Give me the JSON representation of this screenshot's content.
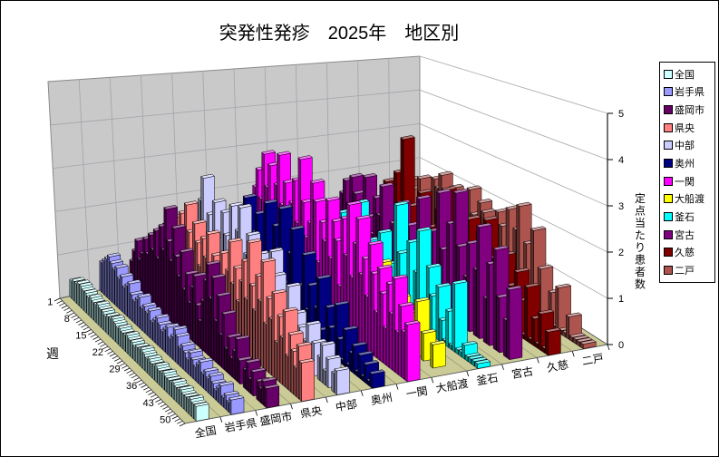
{
  "title": "突発性発疹　2025年　地区別",
  "chart_data": {
    "type": "bar",
    "subtype": "3d-column",
    "depth_axis_title": "週",
    "value_axis_title": "定点当たり患者数",
    "depth_tick_labels": [
      "1",
      "8",
      "15",
      "22",
      "29",
      "36",
      "43",
      "50"
    ],
    "value_tick_labels": [
      "0",
      "1",
      "2",
      "3",
      "4",
      "5"
    ],
    "weeks": 52,
    "ylim": [
      0,
      5
    ],
    "legend_position": "right",
    "categories_note": "depth axis = week 1..52, series = districts",
    "series": [
      {
        "key": "zenkoku",
        "name": "全国",
        "color": "#CCFFFF",
        "values": [
          0.4,
          0.45,
          0.45,
          0.5,
          0.5,
          0.45,
          0.45,
          0.4,
          0.45,
          0.4,
          0.4,
          0.45,
          0.4,
          0.4,
          0.35,
          0.4,
          0.4,
          0.45,
          0.4,
          0.35,
          0.4,
          0.35,
          0.35,
          0.4,
          0.35,
          0.35,
          0.3,
          0.35,
          0.35,
          0.4,
          0.35,
          0.3,
          0.35,
          0.3,
          0.3,
          0.35,
          0.3,
          0.3,
          0.35,
          0.3,
          0.3,
          0.3,
          0.35,
          0.3,
          0.3,
          0.35,
          0.3,
          0.3,
          0.3,
          0.35,
          0.3,
          0.3
        ]
      },
      {
        "key": "iwateken",
        "name": "岩手県",
        "color": "#9999FF",
        "values": [
          0.7,
          0.8,
          0.9,
          1.0,
          0.9,
          0.8,
          0.9,
          0.7,
          0.8,
          0.6,
          0.7,
          0.8,
          0.6,
          0.5,
          0.6,
          0.7,
          0.5,
          0.6,
          0.5,
          0.6,
          0.4,
          0.5,
          0.6,
          0.5,
          0.4,
          0.5,
          0.6,
          0.4,
          0.5,
          0.7,
          0.6,
          0.4,
          0.5,
          0.4,
          0.3,
          0.5,
          0.4,
          0.3,
          0.4,
          0.5,
          0.3,
          0.4,
          0.3,
          0.4,
          0.3,
          0.2,
          0.3,
          0.4,
          0.2,
          0.3,
          0.2,
          0.3
        ]
      },
      {
        "key": "moriokashi",
        "name": "盛岡市",
        "color": "#660066",
        "values": [
          0.6,
          0.9,
          1.2,
          0.8,
          1.0,
          1.4,
          1.1,
          1.6,
          1.3,
          1.8,
          1.2,
          2.0,
          1.5,
          2.5,
          1.8,
          1.4,
          2.2,
          1.6,
          1.2,
          1.8,
          1.0,
          1.4,
          0.8,
          1.2,
          1.5,
          0.9,
          0.6,
          1.1,
          1.6,
          2.0,
          1.3,
          1.8,
          0.9,
          1.5,
          0.7,
          1.2,
          0.5,
          0.8,
          0.4,
          0.6,
          0.9,
          0.5,
          0,
          0.4,
          0.6,
          0.3,
          0.5,
          0,
          0.4,
          0.3,
          0.5,
          0.4
        ]
      },
      {
        "key": "kenoh",
        "name": "県央",
        "color": "#FF8080",
        "values": [
          1.0,
          1.4,
          0.9,
          1.6,
          1.2,
          1.8,
          1.4,
          2.0,
          1.5,
          2.3,
          1.7,
          1.3,
          2.0,
          1.6,
          1.1,
          1.8,
          1.4,
          2.0,
          1.2,
          1.6,
          0.9,
          1.4,
          1.8,
          1.1,
          1.5,
          2.2,
          1.3,
          1.7,
          1.0,
          1.5,
          2.0,
          1.2,
          2.5,
          1.6,
          1.1,
          1.9,
          1.4,
          2.3,
          1.0,
          1.6,
          1.2,
          1.8,
          0.8,
          1.4,
          1.0,
          1.6,
          0.7,
          1.2,
          0.9,
          0.6,
          1.1,
          0.8
        ]
      },
      {
        "key": "chubu",
        "name": "中部",
        "color": "#CCCCFF",
        "values": [
          0.8,
          1.5,
          0.6,
          2.0,
          2.6,
          1.2,
          1.8,
          0.9,
          2.2,
          1.4,
          0.7,
          2.1,
          1.6,
          1.0,
          2.4,
          1.3,
          1.9,
          2.5,
          0.8,
          1.5,
          2.0,
          1.1,
          0.6,
          1.7,
          1.2,
          0.5,
          1.4,
          0.9,
          2.0,
          1.5,
          0.7,
          1.1,
          0.4,
          0.9,
          1.5,
          0.6,
          1.0,
          0.5,
          0.8,
          0,
          0.6,
          1.0,
          0.4,
          0.7,
          0,
          0.5,
          0.8,
          0.3,
          0.6,
          0,
          0.4,
          0.5
        ]
      },
      {
        "key": "oshu",
        "name": "奥州",
        "color": "#000080",
        "values": [
          0.5,
          0.2,
          1.2,
          0.8,
          0.1,
          1.8,
          0.6,
          0.1,
          2.2,
          1.0,
          0.1,
          1.5,
          2.0,
          0.7,
          0.1,
          2.4,
          1.2,
          0.1,
          2.0,
          1.5,
          2.5,
          0.8,
          0.1,
          1.6,
          2.2,
          0.5,
          1.0,
          0.1,
          1.8,
          0.6,
          1.2,
          0.1,
          0.8,
          1.5,
          0.4,
          0.1,
          1.0,
          0.6,
          0.1,
          1.2,
          0.5,
          0.1,
          0.8,
          0.1,
          0.4,
          0.6,
          0.1,
          0.5,
          0.1,
          0.4,
          0.1,
          0.3
        ]
      },
      {
        "key": "ichinoseki",
        "name": "一関",
        "color": "#FF00FF",
        "values": [
          1.5,
          2.0,
          2.5,
          1.8,
          3.0,
          2.2,
          2.8,
          1.6,
          2.4,
          3.2,
          2.0,
          2.6,
          1.4,
          2.2,
          2.8,
          1.8,
          3.4,
          2.4,
          1.6,
          2.0,
          3.0,
          2.6,
          1.2,
          2.2,
          1.8,
          2.8,
          1.5,
          2.4,
          2.0,
          1.0,
          2.6,
          1.8,
          3.0,
          1.4,
          2.2,
          2.8,
          1.6,
          2.0,
          1.2,
          2.4,
          1.8,
          1.0,
          2.0,
          1.5,
          0.8,
          1.8,
          1.2,
          2.0,
          0.9,
          1.5,
          1.0,
          1.2
        ]
      },
      {
        "key": "ofunato",
        "name": "大船渡",
        "color": "#FFFF00",
        "values": [
          0.6,
          0,
          0.6,
          0,
          0.9,
          1.0,
          0,
          0.5,
          0,
          1.4,
          0,
          0,
          0.8,
          0,
          0.6,
          0,
          1.2,
          0,
          0,
          0.6,
          0,
          0,
          1.0,
          0,
          0,
          0.5,
          0.9,
          0,
          0.8,
          0,
          0,
          1.5,
          0,
          0,
          0.6,
          0,
          0,
          1.0,
          0.5,
          0,
          0.8,
          0,
          0,
          1.2,
          0,
          0.6,
          0,
          0,
          0.5,
          0,
          0,
          0
        ]
      },
      {
        "key": "kamaishi",
        "name": "釜石",
        "color": "#00FFFF",
        "values": [
          0,
          0.8,
          0,
          1.0,
          1.2,
          0,
          0.9,
          0.6,
          0,
          1.5,
          0,
          0.8,
          0.9,
          0,
          2.0,
          0,
          0,
          1.2,
          0,
          0.7,
          0,
          1.6,
          0,
          0,
          1.0,
          0,
          2.5,
          1.4,
          0,
          0.8,
          1.8,
          0,
          1.2,
          2.2,
          0.6,
          0,
          1.5,
          0.9,
          0,
          1.2,
          0.5,
          0.1,
          0.8,
          0.1,
          1.5,
          0.1,
          0.1,
          0.3,
          0.1,
          0.1,
          0.1,
          0.1
        ]
      },
      {
        "key": "miyako",
        "name": "宮古",
        "color": "#800080",
        "values": [
          1.4,
          1.8,
          1.2,
          2.0,
          1.6,
          1.0,
          1.5,
          2.2,
          1.2,
          0.8,
          1.8,
          1.4,
          2.2,
          0,
          0.9,
          1.4,
          0,
          2.0,
          1.0,
          0,
          1.6,
          0,
          0,
          2.4,
          0,
          1.2,
          0,
          1.8,
          0,
          2.8,
          1.5,
          0,
          2.2,
          0,
          3.0,
          1.8,
          0,
          1.2,
          2.0,
          0,
          1.5,
          2.5,
          0,
          1.0,
          1.8,
          0,
          2.2,
          1.2,
          0,
          0.8,
          1.5,
          0
        ]
      },
      {
        "key": "kuji",
        "name": "久慈",
        "color": "#800000",
        "values": [
          0.8,
          0,
          1.0,
          1.2,
          1.8,
          0,
          1.4,
          2.2,
          0,
          3.2,
          0,
          1.5,
          0.8,
          0,
          2.0,
          0,
          1.2,
          0,
          0.9,
          1.8,
          0,
          2.4,
          0,
          1.0,
          0,
          1.6,
          0.7,
          0,
          2.0,
          1.2,
          0,
          1.8,
          0,
          2.2,
          0,
          1.4,
          0,
          0.8,
          1.6,
          0,
          1.0,
          0.1,
          1.4,
          0.8,
          0.1,
          1.2,
          0.1,
          0.6,
          0.1,
          0.8,
          0.1,
          0.5
        ]
      },
      {
        "key": "ninohe",
        "name": "二戸",
        "color": "#AE544E",
        "values": [
          1.2,
          0,
          1.6,
          1.4,
          0,
          1.8,
          1.2,
          0,
          1.5,
          2.0,
          1.8,
          2.2,
          0,
          1.6,
          2.0,
          0,
          1.8,
          0,
          0,
          2.2,
          1.6,
          0,
          2.0,
          1.8,
          0,
          1.5,
          0,
          2.0,
          1.7,
          0,
          2.2,
          0,
          1.8,
          2.4,
          0,
          1.6,
          0,
          2.0,
          0,
          1.2,
          0.1,
          0.1,
          0.8,
          0.1,
          1.0,
          0.1,
          0.1,
          0.5,
          0.1,
          0.1,
          0.1,
          0.1
        ]
      }
    ]
  },
  "colors": {
    "floor": "#CBCB98",
    "back_wall": "#C9C9C9",
    "wall_grid": "#A3A3AC",
    "side_grid": "#B0B0B0",
    "axis_line": "#000000",
    "frame": "#000000"
  }
}
